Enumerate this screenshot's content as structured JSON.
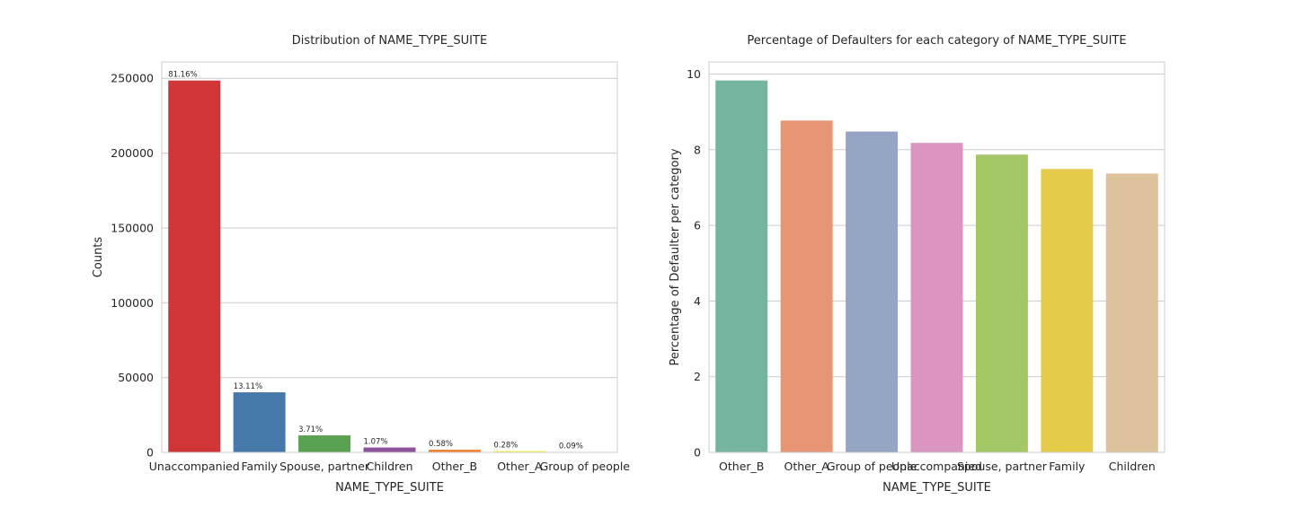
{
  "chart_data": [
    {
      "type": "bar",
      "title": "Distribution of NAME_TYPE_SUITE",
      "xlabel": "NAME_TYPE_SUITE",
      "ylabel": "Counts",
      "categories": [
        "Unaccompanied",
        "Family",
        "Spouse, partner",
        "Children",
        "Other_B",
        "Other_A",
        "Group of people"
      ],
      "values": [
        248526,
        40149,
        11370,
        3267,
        1770,
        866,
        271
      ],
      "data_labels": [
        "81.16%",
        "13.11%",
        "3.71%",
        "1.07%",
        "0.58%",
        "0.28%",
        "0.09%"
      ],
      "colors": [
        "#d03538",
        "#4579a9",
        "#58a252",
        "#8e519b",
        "#f18232",
        "#f6f633",
        "#a5632e"
      ],
      "yticks": [
        0,
        50000,
        100000,
        150000,
        200000,
        250000
      ],
      "ylim": [
        0,
        260946
      ],
      "grid": true
    },
    {
      "type": "bar",
      "title": "Percentage of Defaulters for each category of NAME_TYPE_SUITE",
      "xlabel": "NAME_TYPE_SUITE",
      "ylabel": "Percentage of Defaulter per category",
      "categories": [
        "Other_B",
        "Other_A",
        "Group of people",
        "Unaccompanied",
        "Spouse, partner",
        "Family",
        "Children"
      ],
      "values": [
        9.83,
        8.77,
        8.48,
        8.18,
        7.87,
        7.49,
        7.37
      ],
      "colors": [
        "#75b5a0",
        "#e89575",
        "#95a5c4",
        "#db95c1",
        "#a3c767",
        "#e4cb4a",
        "#dcc39c"
      ],
      "yticks": [
        0,
        2,
        4,
        6,
        8,
        10
      ],
      "ylim": [
        0,
        10.32
      ],
      "grid": true
    }
  ]
}
